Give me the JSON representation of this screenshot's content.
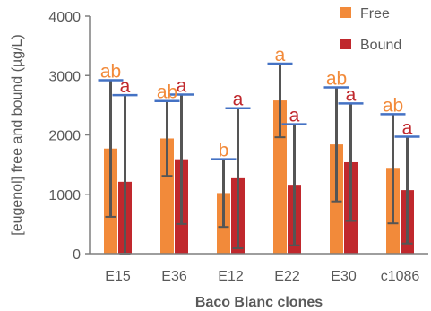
{
  "chart_data": {
    "type": "bar",
    "title": "",
    "xlabel": "Baco Blanc clones",
    "ylabel": "[eugenol] free and bound (µg/L)",
    "ylim": [
      0,
      4000
    ],
    "yticks": [
      0,
      1000,
      2000,
      3000,
      4000
    ],
    "grid": false,
    "legend_placement": "top-right",
    "categories": [
      "E15",
      "E36",
      "E12",
      "E22",
      "E30",
      "c1086"
    ],
    "series": [
      {
        "name": "Free",
        "color": "#F28A3A",
        "values": [
          1770,
          1940,
          1020,
          2580,
          1840,
          1430
        ],
        "error": [
          1150,
          630,
          570,
          620,
          960,
          920
        ],
        "labels": [
          "ab",
          "ab",
          "b",
          "a",
          "ab",
          "ab"
        ],
        "label_color": "#F28A3A"
      },
      {
        "name": "Bound",
        "color": "#C0282D",
        "values": [
          1210,
          1590,
          1270,
          1160,
          1540,
          1070
        ],
        "error": [
          1460,
          1090,
          1180,
          1020,
          990,
          900
        ],
        "labels": [
          "a",
          "a",
          "a",
          "a",
          "a",
          "a"
        ],
        "label_color": "#C0282D"
      }
    ],
    "error_bar_color": "#555555",
    "error_cap_color": "#4472C4"
  }
}
